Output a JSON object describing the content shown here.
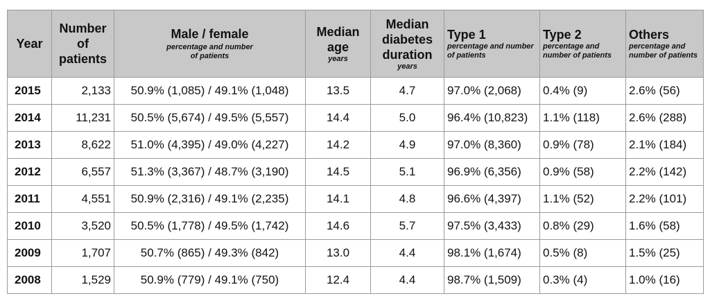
{
  "table": {
    "headers": {
      "year": "Year",
      "patients": "Number of patients",
      "sex": "Male / female",
      "sex_sub": "percentage and number of patients",
      "age": "Median age",
      "age_sub": "years",
      "duration": "Median diabetes duration",
      "duration_sub": "years",
      "type1": "Type 1",
      "type1_sub": "percentage and number of patients",
      "type2": "Type 2",
      "type2_sub": "percentage and number of patients",
      "others": "Others",
      "others_sub": "percentage and number of patients"
    },
    "rows": [
      {
        "year": "2015",
        "patients": "2,133",
        "sex": "50.9% (1,085) / 49.1% (1,048)",
        "age": "13.5",
        "duration": "4.7",
        "type1": "97.0% (2,068)",
        "type2": "0.4% (9)",
        "others": "2.6% (56)"
      },
      {
        "year": "2014",
        "patients": "11,231",
        "sex": "50.5% (5,674) / 49.5% (5,557)",
        "age": "14.4",
        "duration": "5.0",
        "type1": "96.4% (10,823)",
        "type2": "1.1% (118)",
        "others": "2.6% (288)"
      },
      {
        "year": "2013",
        "patients": "8,622",
        "sex": "51.0% (4,395) / 49.0% (4,227)",
        "age": "14.2",
        "duration": "4.9",
        "type1": "97.0% (8,360)",
        "type2": "0.9% (78)",
        "others": "2.1% (184)"
      },
      {
        "year": "2012",
        "patients": "6,557",
        "sex": "51.3% (3,367) / 48.7% (3,190)",
        "age": "14.5",
        "duration": "5.1",
        "type1": "96.9% (6,356)",
        "type2": "0.9% (58)",
        "others": "2.2% (142)"
      },
      {
        "year": "2011",
        "patients": "4,551",
        "sex": "50.9% (2,316) / 49.1% (2,235)",
        "age": "14.1",
        "duration": "4.8",
        "type1": "96.6% (4,397)",
        "type2": "1.1% (52)",
        "others": "2.2% (101)"
      },
      {
        "year": "2010",
        "patients": "3,520",
        "sex": "50.5% (1,778) / 49.5% (1,742)",
        "age": "14.6",
        "duration": "5.7",
        "type1": "97.5% (3,433)",
        "type2": "0.8% (29)",
        "others": "1.6% (58)"
      },
      {
        "year": "2009",
        "patients": "1,707",
        "sex": "50.7% (865) / 49.3% (842)",
        "age": "13.0",
        "duration": "4.4",
        "type1": "98.1% (1,674)",
        "type2": "0.5% (8)",
        "others": "1.5% (25)"
      },
      {
        "year": "2008",
        "patients": "1,529",
        "sex": "50.9% (779) / 49.1% (750)",
        "age": "12.4",
        "duration": "4.4",
        "type1": "98.7% (1,509)",
        "type2": "0.3% (4)",
        "others": "1.0% (16)"
      }
    ]
  },
  "colors": {
    "header_background": "#c8c8c8",
    "border": "#9a9a9a"
  }
}
